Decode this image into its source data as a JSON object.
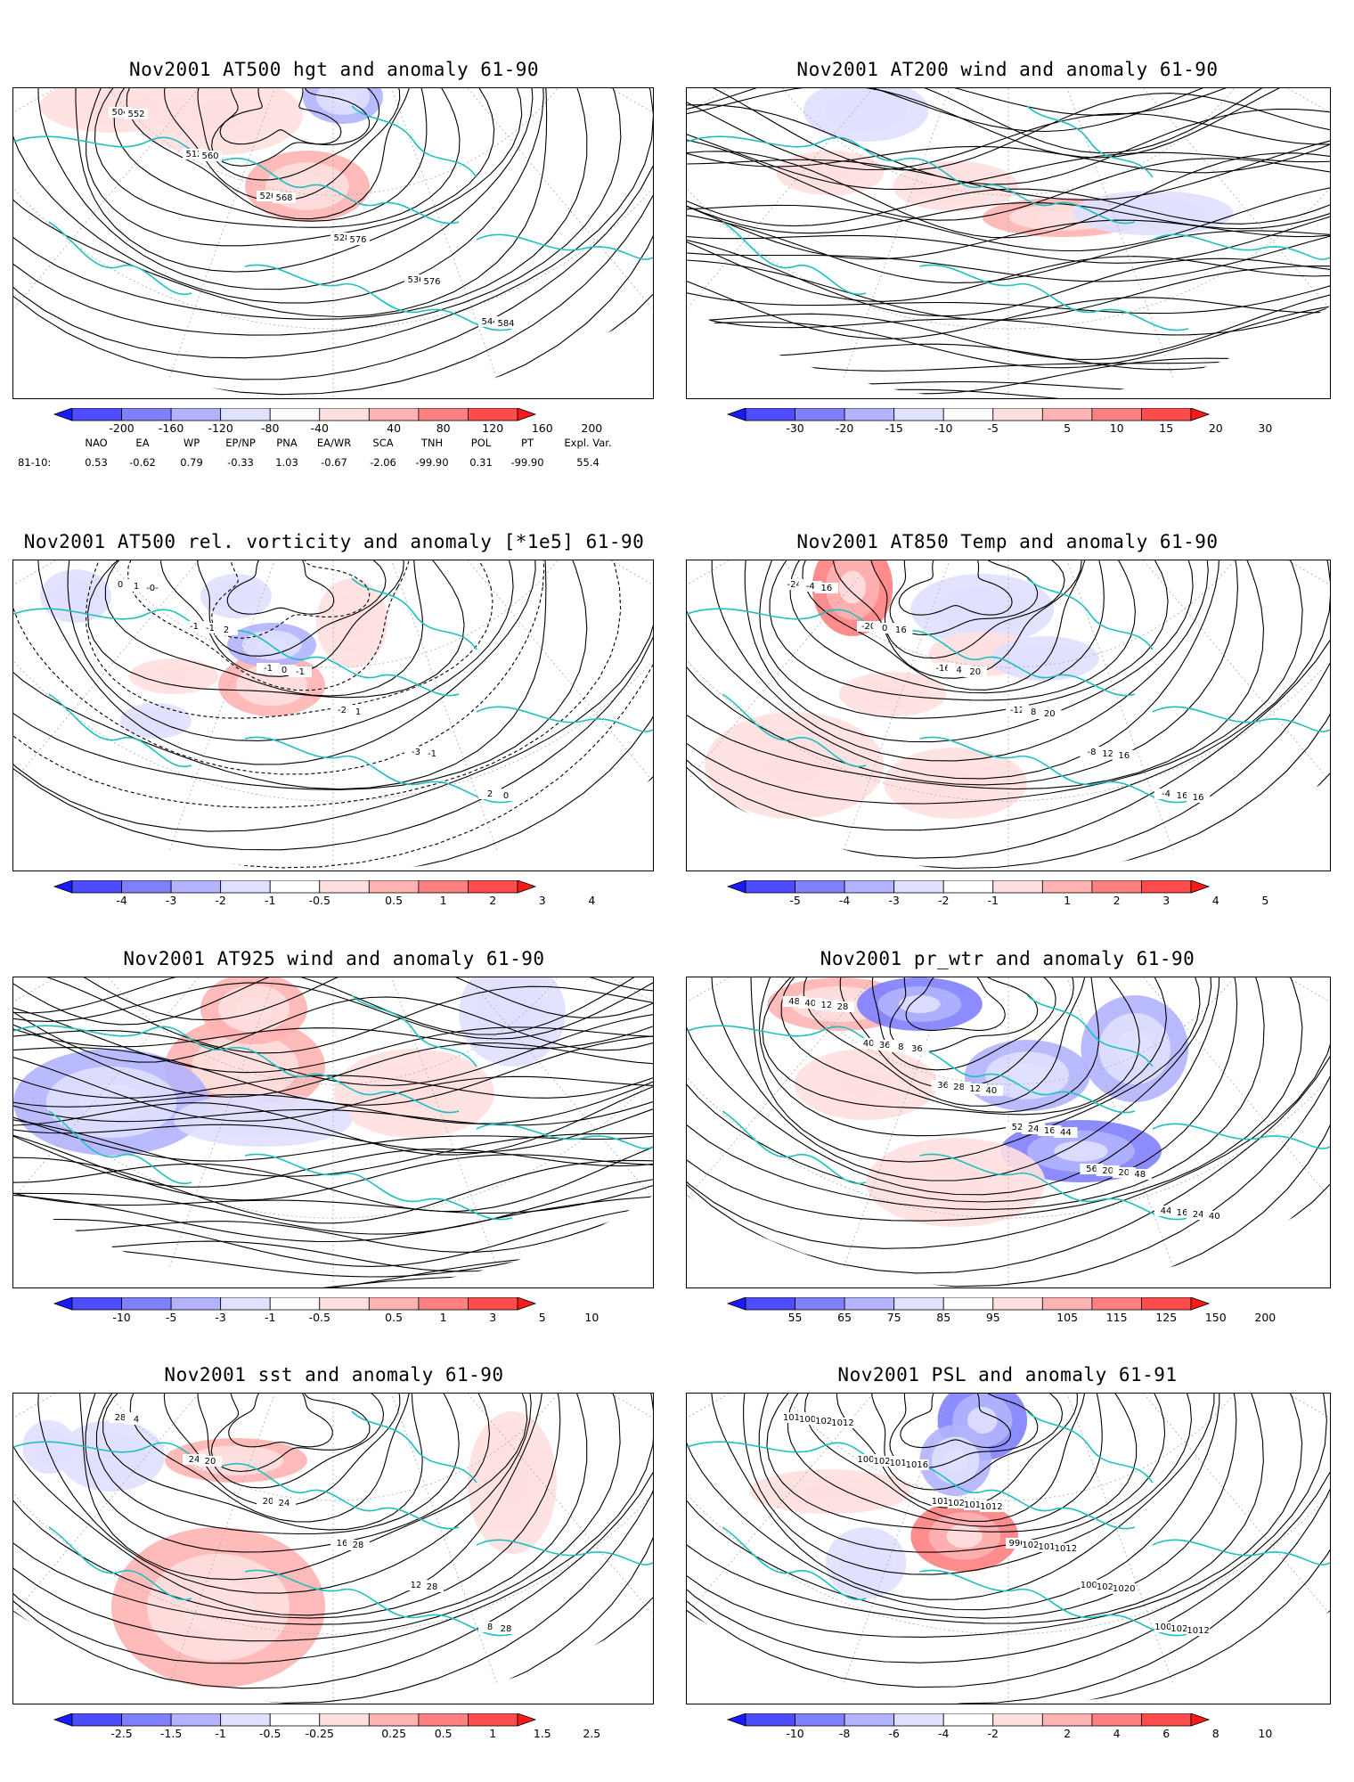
{
  "panels": [
    {
      "id": "p1",
      "title": "Nov2001 AT500 hgt and anomaly 61-90",
      "field": "contours",
      "contour_labels": [
        "504",
        "512",
        "520",
        "528",
        "536",
        "544",
        "552",
        "560",
        "568",
        "576",
        "576",
        "584"
      ],
      "colorbar": {
        "ticks": [
          "-200",
          "-160",
          "-120",
          "-80",
          "-40",
          "40",
          "80",
          "120",
          "160",
          "200"
        ]
      }
    },
    {
      "id": "p2",
      "title": "Nov2001 AT200 wind and anomaly 61-90",
      "field": "streamlines",
      "contour_labels": [],
      "colorbar": {
        "ticks": [
          "-30",
          "-20",
          "-15",
          "-10",
          "-5",
          "5",
          "10",
          "15",
          "20",
          "30"
        ]
      }
    },
    {
      "id": "p3",
      "title": "Nov2001 AT500 rel. vorticity and anomaly [*1e5] 61-90",
      "field": "contours",
      "contour_labels": [
        "0",
        "-1",
        "-1",
        "-2",
        "-3",
        "2",
        "1",
        "-1",
        "0",
        "1",
        "-1",
        "0",
        "-0-",
        "2",
        "-1"
      ],
      "colorbar": {
        "ticks": [
          "-4",
          "-3",
          "-2",
          "-1",
          "-0.5",
          "0.5",
          "1",
          "2",
          "3",
          "4"
        ]
      }
    },
    {
      "id": "p4",
      "title": "Nov2001 AT850 Temp and anomaly 61-90",
      "field": "contours",
      "contour_labels": [
        "-24",
        "-20",
        "-16",
        "-12",
        "-8",
        "-4",
        "-4",
        "0",
        "4",
        "8",
        "12",
        "16",
        "16",
        "16",
        "20",
        "20",
        "16",
        "16"
      ],
      "colorbar": {
        "ticks": [
          "-5",
          "-4",
          "-3",
          "-2",
          "-1",
          "1",
          "2",
          "3",
          "4",
          "5"
        ]
      }
    },
    {
      "id": "p5",
      "title": "Nov2001 AT925 wind and anomaly 61-90",
      "field": "streamlines",
      "contour_labels": [],
      "colorbar": {
        "ticks": [
          "-10",
          "-5",
          "-3",
          "-1",
          "-0.5",
          "0.5",
          "1",
          "3",
          "5",
          "10"
        ]
      }
    },
    {
      "id": "p6",
      "title": "Nov2001 pr_wtr and anomaly 61-90",
      "field": "contours",
      "contour_labels": [
        "48",
        "40",
        "36",
        "52",
        "56",
        "44",
        "40",
        "36",
        "28",
        "24",
        "20",
        "16",
        "12",
        "8",
        "12",
        "16",
        "20",
        "24",
        "28",
        "36",
        "40",
        "44",
        "48",
        "40"
      ],
      "colorbar": {
        "ticks": [
          "55",
          "65",
          "75",
          "85",
          "95",
          "105",
          "115",
          "125",
          "150",
          "200"
        ]
      }
    },
    {
      "id": "p7",
      "title": "Nov2001 sst and anomaly 61-90",
      "field": "contours",
      "contour_labels": [
        "28",
        "24",
        "20",
        "16",
        "12",
        "8",
        "4",
        "20",
        "24",
        "28",
        "28",
        "28"
      ],
      "colorbar": {
        "ticks": [
          "-2.5",
          "-1.5",
          "-1",
          "-0.5",
          "-0.25",
          "0.25",
          "0.5",
          "1",
          "1.5",
          "2.5"
        ]
      }
    },
    {
      "id": "p8",
      "title": "Nov2001 PSL and anomaly 61-91",
      "field": "contours",
      "contour_labels": [
        "1016",
        "1008",
        "1016",
        "996",
        "1000",
        "1004",
        "1008",
        "1028",
        "1024",
        "1020",
        "1020",
        "1024",
        "1028",
        "1016",
        "1012",
        "1016",
        "1020",
        "1012",
        "1012",
        "1016",
        "1012",
        "1012"
      ],
      "colorbar": {
        "ticks": [
          "-10",
          "-8",
          "-6",
          "-4",
          "-2",
          "2",
          "4",
          "6",
          "8",
          "10"
        ]
      }
    }
  ],
  "teleconnections": {
    "headers": [
      "NAO",
      "EA",
      "WP",
      "EP/NP",
      "PNA",
      "EA/WR",
      "SCA",
      "TNH",
      "POL",
      "PT",
      "Expl. Var."
    ],
    "row_label": "81-10:",
    "values": [
      "0.53",
      "-0.62",
      "0.79",
      "-0.33",
      "1.03",
      "-0.67",
      "-2.06",
      "-99.90",
      "0.31",
      "-99.90",
      "55.4"
    ]
  },
  "colors": {
    "coastline": "#20c0c0",
    "contour": "#000000",
    "grid": "#aaaaaa",
    "ramp": [
      "#1a1aff",
      "#4d4dff",
      "#8080ff",
      "#b3b3ff",
      "#e0e0ff",
      "#ffffff",
      "#ffe0e0",
      "#ffb3b3",
      "#ff8080",
      "#ff4d4d",
      "#ff1a1a"
    ]
  }
}
